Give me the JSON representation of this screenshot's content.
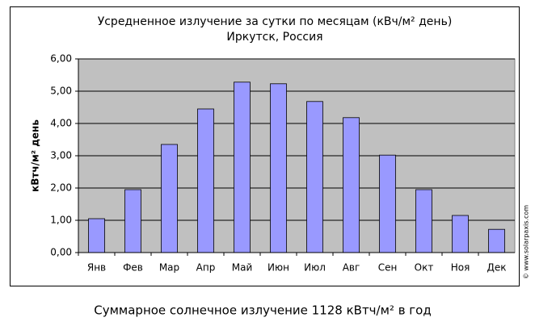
{
  "chart_data": {
    "type": "bar",
    "title": "Усредненное излучение за сутки по месяцам (кВч/м² день)",
    "subtitle": "Иркутск, Россия",
    "y_label": "кВтч/м² день",
    "categories": [
      "Янв",
      "Фев",
      "Мар",
      "Апр",
      "Май",
      "Июн",
      "Июл",
      "Авг",
      "Сен",
      "Окт",
      "Ноя",
      "Дек"
    ],
    "values": [
      1.05,
      1.95,
      3.35,
      4.45,
      5.28,
      5.23,
      4.68,
      4.18,
      3.02,
      1.95,
      1.15,
      0.72
    ],
    "color": "#9999ff",
    "ylim": [
      0,
      6
    ],
    "yticks": [
      {
        "value": 0,
        "label": "0,00"
      },
      {
        "value": 1,
        "label": "1,00"
      },
      {
        "value": 2,
        "label": "2,00"
      },
      {
        "value": 3,
        "label": "3,00"
      },
      {
        "value": 4,
        "label": "4,00"
      },
      {
        "value": 5,
        "label": "5,00"
      },
      {
        "value": 6,
        "label": "6,00"
      }
    ],
    "grid": true,
    "source": "© www.solarpaxis.com",
    "caption": "Суммарное солнечное излучение 1128 кВтч/м² в год"
  }
}
